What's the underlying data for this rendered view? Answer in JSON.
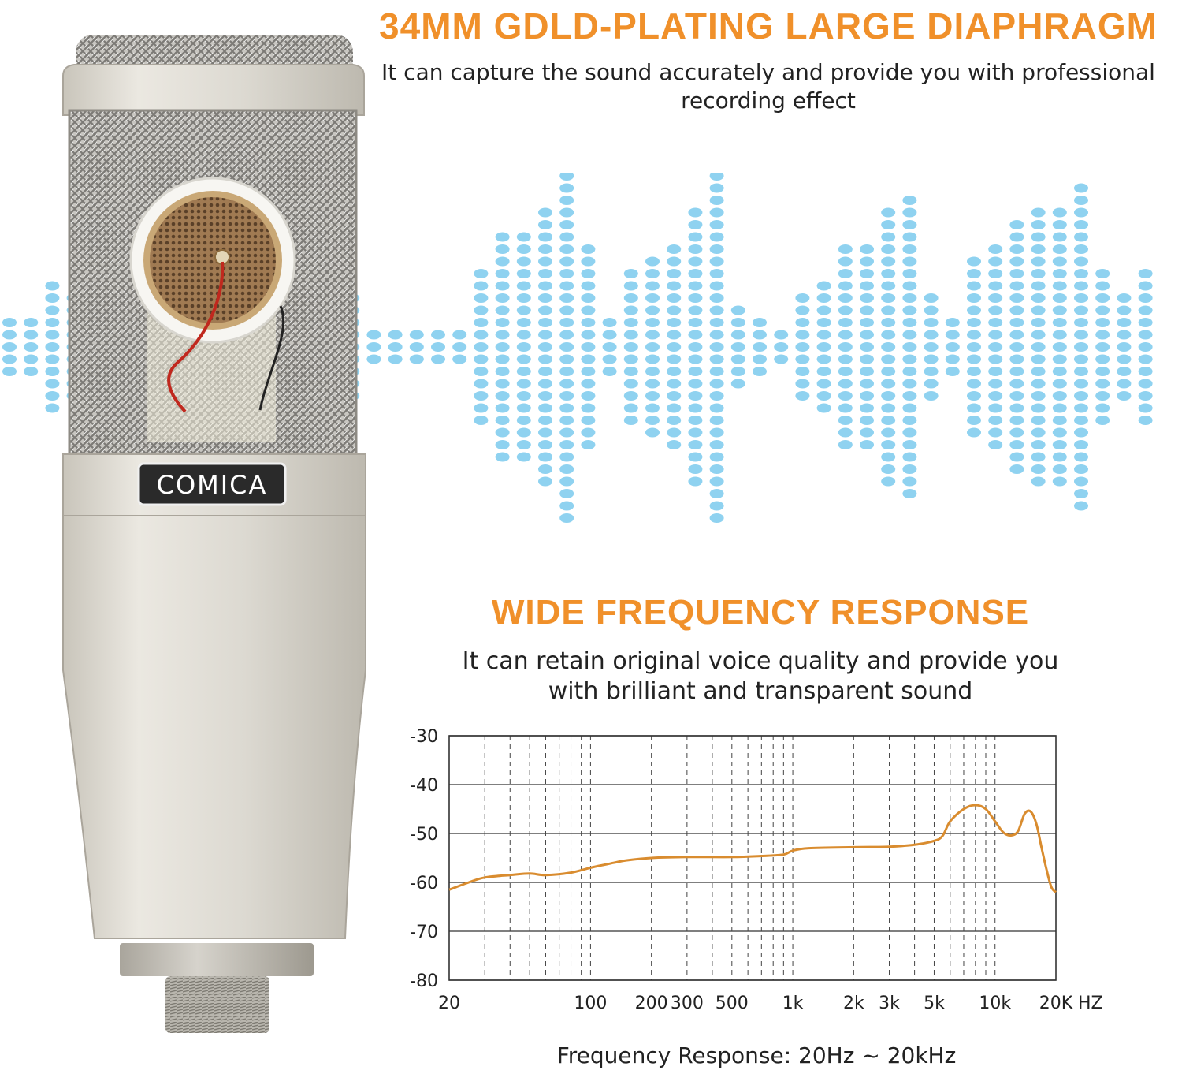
{
  "colors": {
    "accent": "#f0902a",
    "curve": "#d98c2f",
    "waveform_dots": "#8fd2f0",
    "body_metal": "#dcd9d1",
    "text": "#222222"
  },
  "headline_top": "34MM GDLD-PLATING LARGE DIAPHRAGM",
  "subtext_top": "It can capture the sound accurately and provide you with professional recording effect",
  "headline_mid": "WIDE FREQUENCY RESPONSE",
  "subtext_mid": "It can retain original voice quality and provide you with brilliant and transparent sound",
  "caption": "Frequency Response: 20Hz ~ 20kHz",
  "product": {
    "brand": "COMICA",
    "photo": "condenser-microphone-with-capsule-visible",
    "icon": "microphone-icon"
  },
  "waveform_graphic": {
    "icon": "dotted-sound-wave-icon",
    "column_levels": [
      2,
      2,
      5,
      4,
      5,
      4,
      5,
      5,
      10,
      9,
      12,
      7,
      11,
      14,
      15,
      9,
      4,
      1,
      1,
      1,
      1,
      1,
      6,
      9,
      9,
      11,
      14,
      8,
      2,
      6,
      7,
      8,
      11,
      14,
      3,
      2,
      1,
      4,
      5,
      8,
      8,
      11,
      12,
      4,
      2,
      7,
      8,
      10,
      11,
      11,
      13,
      6,
      4,
      6
    ]
  },
  "chart_data": {
    "type": "line",
    "title": "",
    "xlabel": "",
    "ylabel": "",
    "x_scale": "log",
    "xlim": [
      20,
      20000
    ],
    "ylim": [
      -80,
      -30
    ],
    "y_ticks": [
      -30,
      -40,
      -50,
      -60,
      -70,
      -80
    ],
    "y_tick_labels": [
      "-30",
      "-40",
      "-50",
      "-60",
      "-70",
      "-80"
    ],
    "x_ticks": [
      20,
      100,
      200,
      300,
      500,
      1000,
      2000,
      3000,
      5000,
      10000,
      20000
    ],
    "x_tick_labels": [
      "20",
      "100",
      "200",
      "300",
      "500",
      "1k",
      "2k",
      "3k",
      "5k",
      "10k",
      "20K"
    ],
    "x_unit_label": "HZ",
    "grid": "horizontal solid, vertical dashed",
    "series": [
      {
        "x": [
          20,
          25,
          30,
          40,
          50,
          60,
          80,
          100,
          130,
          150,
          200,
          300,
          500,
          700,
          900,
          1000,
          1200,
          2000,
          3000,
          4000,
          5000,
          5500,
          6000,
          7000,
          8000,
          9000,
          10000,
          11000,
          12000,
          13000,
          14000,
          15000,
          16000,
          17000,
          18000,
          19000,
          20000
        ],
        "y": [
          -61.5,
          -60,
          -59,
          -58.5,
          -58.2,
          -58.5,
          -58,
          -57,
          -56,
          -55.5,
          -55,
          -54.8,
          -54.8,
          -54.6,
          -54.3,
          -53.5,
          -53,
          -52.8,
          -52.7,
          -52.3,
          -51.5,
          -50.5,
          -47.5,
          -45,
          -44.2,
          -45,
          -47.5,
          -49.8,
          -50.4,
          -49.5,
          -46,
          -45.5,
          -48,
          -53,
          -57.5,
          -61,
          -62
        ]
      }
    ]
  }
}
